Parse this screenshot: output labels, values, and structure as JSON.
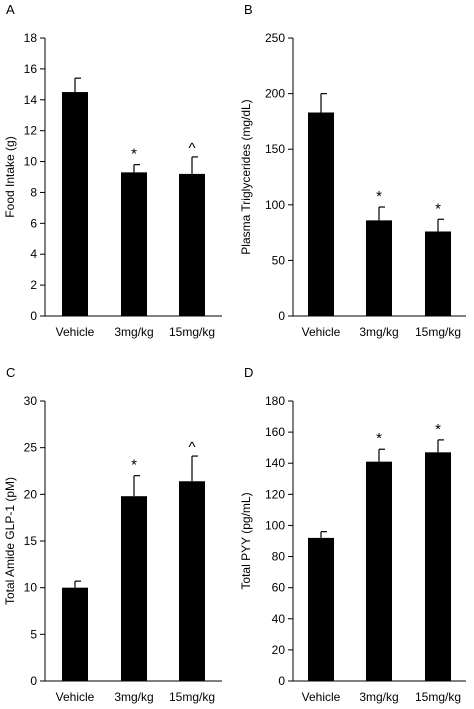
{
  "chart_data": [
    {
      "type": "bar",
      "panel": "A",
      "ylabel": "Food Intake (g)",
      "ylim": [
        0,
        18
      ],
      "yticks": [
        0,
        2,
        4,
        6,
        8,
        10,
        12,
        14,
        16,
        18
      ],
      "categories": [
        "Vehicle",
        "3mg/kg",
        "15mg/kg"
      ],
      "values": [
        14.5,
        9.3,
        9.2
      ],
      "errors": [
        0.9,
        0.5,
        1.1
      ],
      "annotations": [
        "",
        "*",
        "^"
      ]
    },
    {
      "type": "bar",
      "panel": "B",
      "ylabel": "Plasma Triglycerides (mg/dL)",
      "ylim": [
        0,
        250
      ],
      "yticks": [
        0,
        50,
        100,
        150,
        200,
        250
      ],
      "categories": [
        "Vehicle",
        "3mg/kg",
        "15mg/kg"
      ],
      "values": [
        183,
        86,
        76
      ],
      "errors": [
        17,
        12,
        11
      ],
      "annotations": [
        "",
        "*",
        "*"
      ]
    },
    {
      "type": "bar",
      "panel": "C",
      "ylabel": "Total Amide GLP-1 (pM)",
      "ylim": [
        0,
        30
      ],
      "yticks": [
        0,
        5,
        10,
        15,
        20,
        25,
        30
      ],
      "categories": [
        "Vehicle",
        "3mg/kg",
        "15mg/kg"
      ],
      "values": [
        10,
        19.8,
        21.4
      ],
      "errors": [
        0.7,
        2.2,
        2.7
      ],
      "annotations": [
        "",
        "*",
        "^"
      ]
    },
    {
      "type": "bar",
      "panel": "D",
      "ylabel": "Total PYY (pg/mL)",
      "ylim": [
        0,
        180
      ],
      "yticks": [
        0,
        20,
        40,
        60,
        80,
        100,
        120,
        140,
        160,
        180
      ],
      "categories": [
        "Vehicle",
        "3mg/kg",
        "15mg/kg"
      ],
      "values": [
        92,
        141,
        147
      ],
      "errors": [
        4,
        8,
        8
      ],
      "annotations": [
        "",
        "*",
        "*"
      ]
    }
  ]
}
